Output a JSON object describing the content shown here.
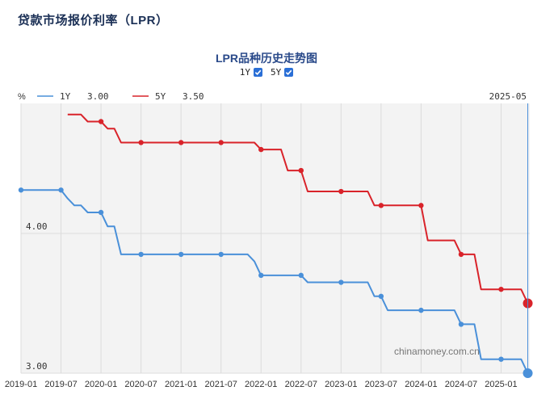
{
  "page": {
    "title": "贷款市场报价利率（LPR）"
  },
  "chart_header": {
    "title": "LPR品种历史走势图",
    "toggles": [
      {
        "label": "1Y",
        "checked": true
      },
      {
        "label": "5Y",
        "checked": true
      }
    ]
  },
  "tooltip": {
    "unit": "%",
    "date": "2025-05",
    "items": [
      {
        "label": "1Y",
        "value": "3.00",
        "color": "#4a90d9"
      },
      {
        "label": "5Y",
        "value": "3.50",
        "color": "#d9232a"
      }
    ]
  },
  "watermark": "chinamoney.com.cn",
  "chart_data": {
    "type": "line",
    "x_tick_labels": [
      "2019-01",
      "2019-07",
      "2020-01",
      "2020-07",
      "2021-01",
      "2021-07",
      "2022-01",
      "2022-07",
      "2023-01",
      "2023-07",
      "2024-01",
      "2024-07",
      "2025-01"
    ],
    "y_tick_labels": [
      "3.00",
      "4.00"
    ],
    "ylim": [
      3.0,
      4.93
    ],
    "series": [
      {
        "name": "1Y",
        "color": "#4a90d9",
        "points": [
          [
            "2019-01",
            4.31
          ],
          [
            "2019-07",
            4.31
          ],
          [
            "2019-08",
            4.25
          ],
          [
            "2019-09",
            4.2
          ],
          [
            "2019-10",
            4.2
          ],
          [
            "2019-11",
            4.15
          ],
          [
            "2019-12",
            4.15
          ],
          [
            "2020-01",
            4.15
          ],
          [
            "2020-02",
            4.05
          ],
          [
            "2020-03",
            4.05
          ],
          [
            "2020-04",
            3.85
          ],
          [
            "2020-05",
            3.85
          ],
          [
            "2020-06",
            3.85
          ],
          [
            "2020-07",
            3.85
          ],
          [
            "2020-08",
            3.85
          ],
          [
            "2020-09",
            3.85
          ],
          [
            "2020-10",
            3.85
          ],
          [
            "2020-11",
            3.85
          ],
          [
            "2020-12",
            3.85
          ],
          [
            "2021-01",
            3.85
          ],
          [
            "2021-02",
            3.85
          ],
          [
            "2021-03",
            3.85
          ],
          [
            "2021-04",
            3.85
          ],
          [
            "2021-05",
            3.85
          ],
          [
            "2021-06",
            3.85
          ],
          [
            "2021-07",
            3.85
          ],
          [
            "2021-08",
            3.85
          ],
          [
            "2021-09",
            3.85
          ],
          [
            "2021-10",
            3.85
          ],
          [
            "2021-11",
            3.85
          ],
          [
            "2021-12",
            3.8
          ],
          [
            "2022-01",
            3.7
          ],
          [
            "2022-02",
            3.7
          ],
          [
            "2022-03",
            3.7
          ],
          [
            "2022-04",
            3.7
          ],
          [
            "2022-05",
            3.7
          ],
          [
            "2022-06",
            3.7
          ],
          [
            "2022-07",
            3.7
          ],
          [
            "2022-08",
            3.65
          ],
          [
            "2022-09",
            3.65
          ],
          [
            "2022-10",
            3.65
          ],
          [
            "2022-11",
            3.65
          ],
          [
            "2022-12",
            3.65
          ],
          [
            "2023-01",
            3.65
          ],
          [
            "2023-02",
            3.65
          ],
          [
            "2023-03",
            3.65
          ],
          [
            "2023-04",
            3.65
          ],
          [
            "2023-05",
            3.65
          ],
          [
            "2023-06",
            3.55
          ],
          [
            "2023-07",
            3.55
          ],
          [
            "2023-08",
            3.45
          ],
          [
            "2023-09",
            3.45
          ],
          [
            "2023-10",
            3.45
          ],
          [
            "2023-11",
            3.45
          ],
          [
            "2023-12",
            3.45
          ],
          [
            "2024-01",
            3.45
          ],
          [
            "2024-02",
            3.45
          ],
          [
            "2024-03",
            3.45
          ],
          [
            "2024-04",
            3.45
          ],
          [
            "2024-05",
            3.45
          ],
          [
            "2024-06",
            3.45
          ],
          [
            "2024-07",
            3.35
          ],
          [
            "2024-08",
            3.35
          ],
          [
            "2024-09",
            3.35
          ],
          [
            "2024-10",
            3.1
          ],
          [
            "2024-11",
            3.1
          ],
          [
            "2024-12",
            3.1
          ],
          [
            "2025-01",
            3.1
          ],
          [
            "2025-02",
            3.1
          ],
          [
            "2025-03",
            3.1
          ],
          [
            "2025-04",
            3.1
          ],
          [
            "2025-05",
            3.0
          ]
        ]
      },
      {
        "name": "5Y",
        "color": "#d9232a",
        "points": [
          [
            "2019-08",
            4.85
          ],
          [
            "2019-09",
            4.85
          ],
          [
            "2019-10",
            4.85
          ],
          [
            "2019-11",
            4.8
          ],
          [
            "2019-12",
            4.8
          ],
          [
            "2020-01",
            4.8
          ],
          [
            "2020-02",
            4.75
          ],
          [
            "2020-03",
            4.75
          ],
          [
            "2020-04",
            4.65
          ],
          [
            "2020-05",
            4.65
          ],
          [
            "2020-06",
            4.65
          ],
          [
            "2020-07",
            4.65
          ],
          [
            "2020-08",
            4.65
          ],
          [
            "2020-09",
            4.65
          ],
          [
            "2020-10",
            4.65
          ],
          [
            "2020-11",
            4.65
          ],
          [
            "2020-12",
            4.65
          ],
          [
            "2021-01",
            4.65
          ],
          [
            "2021-02",
            4.65
          ],
          [
            "2021-03",
            4.65
          ],
          [
            "2021-04",
            4.65
          ],
          [
            "2021-05",
            4.65
          ],
          [
            "2021-06",
            4.65
          ],
          [
            "2021-07",
            4.65
          ],
          [
            "2021-08",
            4.65
          ],
          [
            "2021-09",
            4.65
          ],
          [
            "2021-10",
            4.65
          ],
          [
            "2021-11",
            4.65
          ],
          [
            "2021-12",
            4.65
          ],
          [
            "2022-01",
            4.6
          ],
          [
            "2022-02",
            4.6
          ],
          [
            "2022-03",
            4.6
          ],
          [
            "2022-04",
            4.6
          ],
          [
            "2022-05",
            4.45
          ],
          [
            "2022-06",
            4.45
          ],
          [
            "2022-07",
            4.45
          ],
          [
            "2022-08",
            4.3
          ],
          [
            "2022-09",
            4.3
          ],
          [
            "2022-10",
            4.3
          ],
          [
            "2022-11",
            4.3
          ],
          [
            "2022-12",
            4.3
          ],
          [
            "2023-01",
            4.3
          ],
          [
            "2023-02",
            4.3
          ],
          [
            "2023-03",
            4.3
          ],
          [
            "2023-04",
            4.3
          ],
          [
            "2023-05",
            4.3
          ],
          [
            "2023-06",
            4.2
          ],
          [
            "2023-07",
            4.2
          ],
          [
            "2023-08",
            4.2
          ],
          [
            "2023-09",
            4.2
          ],
          [
            "2023-10",
            4.2
          ],
          [
            "2023-11",
            4.2
          ],
          [
            "2023-12",
            4.2
          ],
          [
            "2024-01",
            4.2
          ],
          [
            "2024-02",
            3.95
          ],
          [
            "2024-03",
            3.95
          ],
          [
            "2024-04",
            3.95
          ],
          [
            "2024-05",
            3.95
          ],
          [
            "2024-06",
            3.95
          ],
          [
            "2024-07",
            3.85
          ],
          [
            "2024-08",
            3.85
          ],
          [
            "2024-09",
            3.85
          ],
          [
            "2024-10",
            3.6
          ],
          [
            "2024-11",
            3.6
          ],
          [
            "2024-12",
            3.6
          ],
          [
            "2025-01",
            3.6
          ],
          [
            "2025-02",
            3.6
          ],
          [
            "2025-03",
            3.6
          ],
          [
            "2025-04",
            3.6
          ],
          [
            "2025-05",
            3.5
          ]
        ]
      }
    ],
    "marker_dates": [
      "2019-01",
      "2019-07",
      "2020-01",
      "2020-07",
      "2021-01",
      "2021-07",
      "2022-01",
      "2022-07",
      "2023-01",
      "2023-07",
      "2024-01",
      "2024-07",
      "2025-01",
      "2025-05"
    ],
    "highlight_date": "2025-05"
  }
}
